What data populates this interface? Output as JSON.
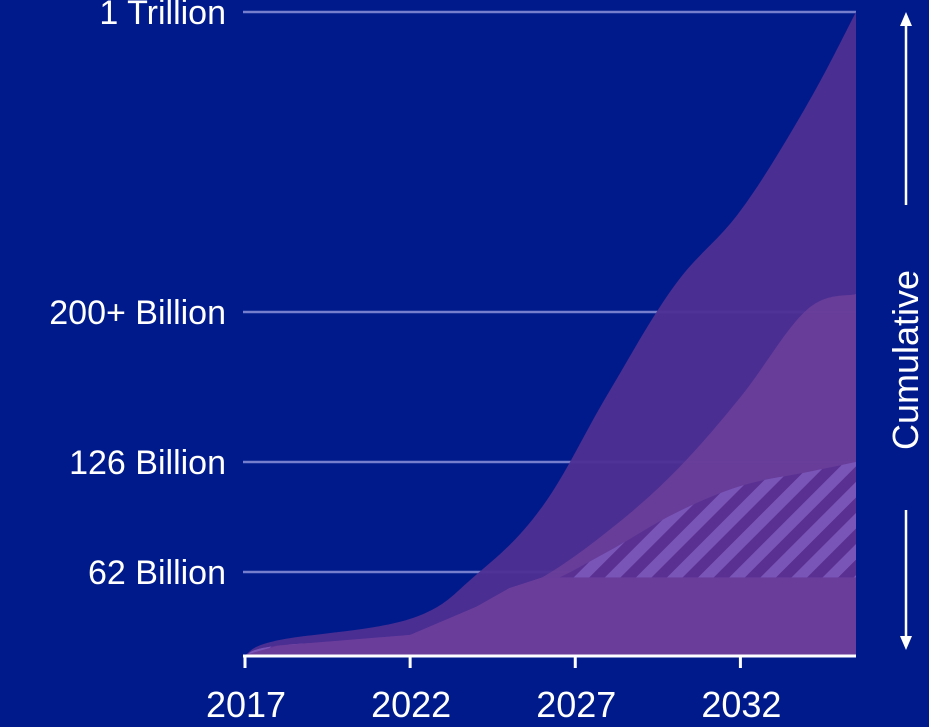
{
  "chart_data": {
    "type": "area",
    "title": "",
    "xlabel": "",
    "ylabel": "",
    "x": [
      2017,
      2018,
      2022,
      2027,
      2032,
      2035.5
    ],
    "xlim": [
      2017,
      2035.5
    ],
    "y_ticks": [
      {
        "label": "62 Billion",
        "value": 62
      },
      {
        "label": "126 Billion",
        "value": 126
      },
      {
        "label": "200+ Billion",
        "value": 200
      },
      {
        "label": "1 Trillion",
        "value": 1000
      }
    ],
    "x_ticks": [
      2017,
      2022,
      2027,
      2032
    ],
    "side_label": "Cumulative",
    "grid": true,
    "colors": {
      "background": "#001a8c",
      "grid": "#8a90d8",
      "axis": "#ffffff",
      "hatch": "#7a55b8"
    },
    "series": [
      {
        "key": "outer",
        "color": "#4e2f92",
        "opacity": 0.95,
        "points": [
          [
            2017,
            0
          ],
          [
            2018,
            11
          ],
          [
            2022,
            27
          ],
          [
            2024,
            60
          ],
          [
            2026,
            100
          ],
          [
            2028,
            160
          ],
          [
            2030,
            270
          ],
          [
            2032,
            470
          ],
          [
            2034,
            750
          ],
          [
            2035.5,
            1000
          ]
        ]
      },
      {
        "key": "middle",
        "color": "#6a3f9a",
        "opacity": 0.9,
        "points": [
          [
            2017,
            0
          ],
          [
            2018,
            7
          ],
          [
            2022,
            15
          ],
          [
            2024,
            35
          ],
          [
            2026,
            58
          ],
          [
            2028,
            86
          ],
          [
            2030,
            120
          ],
          [
            2032,
            158
          ],
          [
            2034,
            205
          ],
          [
            2035.5,
            248
          ]
        ]
      },
      {
        "key": "inner",
        "color": "#6a3d9b",
        "opacity": 1,
        "hatched": true,
        "points": [
          [
            2017,
            0
          ],
          [
            2018,
            7
          ],
          [
            2022,
            15
          ],
          [
            2024,
            36
          ],
          [
            2026,
            52
          ],
          [
            2028,
            74
          ],
          [
            2030,
            96
          ],
          [
            2032,
            112
          ],
          [
            2034,
            120
          ],
          [
            2035.5,
            126
          ]
        ]
      },
      {
        "key": "base",
        "color": "#6a3d9b",
        "opacity": 1,
        "points": [
          [
            2017,
            0
          ],
          [
            2018,
            7
          ],
          [
            2022,
            15
          ],
          [
            2024,
            36
          ],
          [
            2025,
            50
          ],
          [
            2026,
            58
          ],
          [
            2035.5,
            58
          ]
        ]
      }
    ]
  }
}
